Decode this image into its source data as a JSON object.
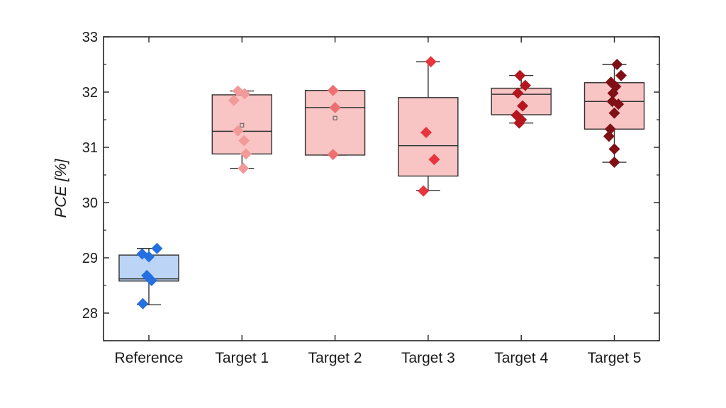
{
  "chart_data": {
    "type": "box",
    "title": "",
    "xlabel": "",
    "ylabel": "PCE [%]",
    "ylim": [
      27.5,
      33
    ],
    "yticks": [
      28,
      29,
      30,
      31,
      32,
      33
    ],
    "grid": false,
    "categories": [
      "Reference",
      "Target 1",
      "Target 2",
      "Target 3",
      "Target 4",
      "Target 5"
    ],
    "boxes": [
      {
        "category": "Reference",
        "whisker_low": 28.15,
        "q1": 28.58,
        "median": 28.62,
        "q3": 29.05,
        "whisker_high": 29.17,
        "mean": null,
        "fill": "#bcd4f6",
        "point_color": "#2470e0",
        "points": [
          [
            -0.1,
            29.07
          ],
          [
            0.0,
            29.02
          ],
          [
            0.12,
            29.17
          ],
          [
            -0.03,
            28.68
          ],
          [
            0.04,
            28.59
          ],
          [
            -0.09,
            28.17
          ]
        ]
      },
      {
        "category": "Target 1",
        "whisker_low": 30.62,
        "q1": 30.88,
        "median": 31.29,
        "q3": 31.95,
        "whisker_high": 32.02,
        "mean": 31.4,
        "fill": "#f8c4c4",
        "point_color": "#f29a9a",
        "points": [
          [
            -0.12,
            31.85
          ],
          [
            -0.06,
            32.02
          ],
          [
            0.04,
            31.97
          ],
          [
            -0.06,
            31.3
          ],
          [
            0.03,
            31.12
          ],
          [
            0.06,
            30.88
          ],
          [
            0.02,
            30.62
          ]
        ]
      },
      {
        "category": "Target 2",
        "whisker_low": 30.86,
        "q1": 30.86,
        "median": 31.72,
        "q3": 32.03,
        "whisker_high": 32.03,
        "mean": 31.53,
        "fill": "#f8c4c4",
        "point_color": "#ec6f72",
        "points": [
          [
            -0.03,
            32.03
          ],
          [
            0.0,
            31.72
          ],
          [
            -0.03,
            30.87
          ]
        ]
      },
      {
        "category": "Target 3",
        "whisker_low": 30.22,
        "q1": 30.48,
        "median": 31.03,
        "q3": 31.9,
        "whisker_high": 32.55,
        "mean": null,
        "fill": "#f8c4c4",
        "point_color": "#e8353d",
        "points": [
          [
            0.04,
            32.55
          ],
          [
            -0.03,
            31.27
          ],
          [
            0.09,
            30.78
          ],
          [
            -0.07,
            30.21
          ]
        ]
      },
      {
        "category": "Target 4",
        "whisker_low": 31.44,
        "q1": 31.59,
        "median": 31.96,
        "q3": 32.07,
        "whisker_high": 32.3,
        "mean": null,
        "fill": "#f8c4c4",
        "point_color": "#b5161d",
        "points": [
          [
            -0.02,
            32.3
          ],
          [
            0.06,
            32.12
          ],
          [
            -0.05,
            31.98
          ],
          [
            0.02,
            31.75
          ],
          [
            -0.07,
            31.58
          ],
          [
            0.0,
            31.5
          ],
          [
            -0.03,
            31.44
          ]
        ]
      },
      {
        "category": "Target 5",
        "whisker_low": 30.73,
        "q1": 31.33,
        "median": 31.83,
        "q3": 32.17,
        "whisker_high": 32.5,
        "mean": null,
        "fill": "#f8c4c4",
        "point_color": "#7f1015",
        "points": [
          [
            0.04,
            32.5
          ],
          [
            0.1,
            32.3
          ],
          [
            -0.05,
            32.18
          ],
          [
            0.02,
            32.1
          ],
          [
            -0.02,
            31.98
          ],
          [
            -0.03,
            31.83
          ],
          [
            0.06,
            31.78
          ],
          [
            0.0,
            31.62
          ],
          [
            -0.06,
            31.33
          ],
          [
            -0.08,
            31.2
          ],
          [
            0.0,
            30.97
          ],
          [
            0.0,
            30.73
          ]
        ]
      }
    ]
  }
}
